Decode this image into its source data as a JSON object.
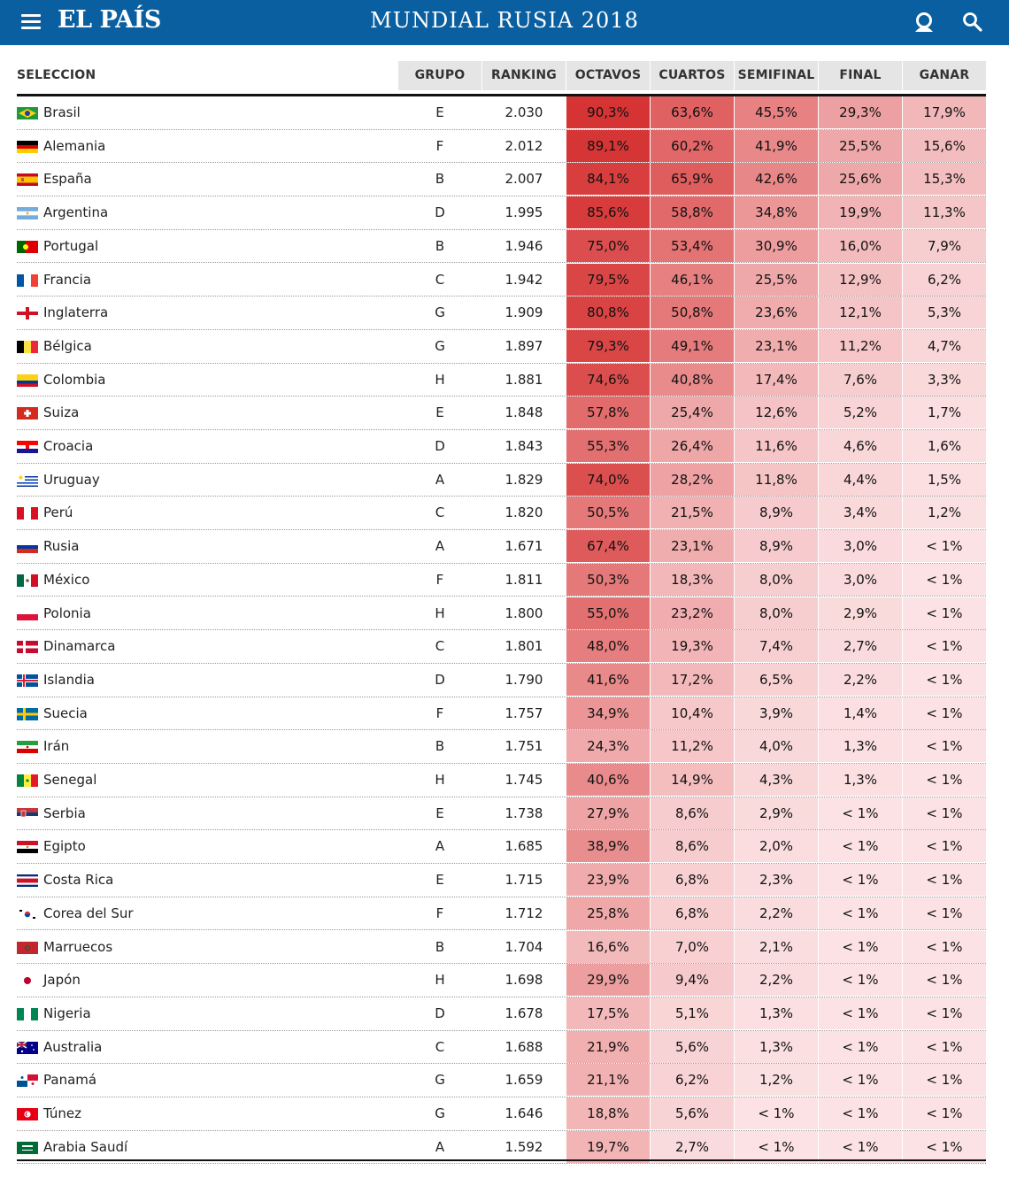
{
  "header": {
    "logo": "EL PAÍS",
    "title": "MUNDIAL RUSIA 2018",
    "menu_icon": "hamburger-menu-icon",
    "user_icon": "user-icon",
    "search_icon": "search-icon",
    "bg_color": "#0a5fa0"
  },
  "table": {
    "columns": [
      "SELECCION",
      "GRUPO",
      "RANKING",
      "OCTAVOS",
      "CUARTOS",
      "SEMIFINAL",
      "FINAL",
      "GANAR"
    ],
    "rows": [
      {
        "team": "Brasil",
        "flag": "br",
        "group": "E",
        "ranking": "2.030",
        "octavos": "90,3%",
        "cuartos": "63,6%",
        "semifinal": "45,5%",
        "final": "29,3%",
        "ganar": "17,9%"
      },
      {
        "team": "Alemania",
        "flag": "de",
        "group": "F",
        "ranking": "2.012",
        "octavos": "89,1%",
        "cuartos": "60,2%",
        "semifinal": "41,9%",
        "final": "25,5%",
        "ganar": "15,6%"
      },
      {
        "team": "España",
        "flag": "es",
        "group": "B",
        "ranking": "2.007",
        "octavos": "84,1%",
        "cuartos": "65,9%",
        "semifinal": "42,6%",
        "final": "25,6%",
        "ganar": "15,3%"
      },
      {
        "team": "Argentina",
        "flag": "ar",
        "group": "D",
        "ranking": "1.995",
        "octavos": "85,6%",
        "cuartos": "58,8%",
        "semifinal": "34,8%",
        "final": "19,9%",
        "ganar": "11,3%"
      },
      {
        "team": "Portugal",
        "flag": "pt",
        "group": "B",
        "ranking": "1.946",
        "octavos": "75,0%",
        "cuartos": "53,4%",
        "semifinal": "30,9%",
        "final": "16,0%",
        "ganar": "7,9%"
      },
      {
        "team": "Francia",
        "flag": "fr",
        "group": "C",
        "ranking": "1.942",
        "octavos": "79,5%",
        "cuartos": "46,1%",
        "semifinal": "25,5%",
        "final": "12,9%",
        "ganar": "6,2%"
      },
      {
        "team": "Inglaterra",
        "flag": "en",
        "group": "G",
        "ranking": "1.909",
        "octavos": "80,8%",
        "cuartos": "50,8%",
        "semifinal": "23,6%",
        "final": "12,1%",
        "ganar": "5,3%"
      },
      {
        "team": "Bélgica",
        "flag": "be",
        "group": "G",
        "ranking": "1.897",
        "octavos": "79,3%",
        "cuartos": "49,1%",
        "semifinal": "23,1%",
        "final": "11,2%",
        "ganar": "4,7%"
      },
      {
        "team": "Colombia",
        "flag": "co",
        "group": "H",
        "ranking": "1.881",
        "octavos": "74,6%",
        "cuartos": "40,8%",
        "semifinal": "17,4%",
        "final": "7,6%",
        "ganar": "3,3%"
      },
      {
        "team": "Suiza",
        "flag": "ch",
        "group": "E",
        "ranking": "1.848",
        "octavos": "57,8%",
        "cuartos": "25,4%",
        "semifinal": "12,6%",
        "final": "5,2%",
        "ganar": "1,7%"
      },
      {
        "team": "Croacia",
        "flag": "hr",
        "group": "D",
        "ranking": "1.843",
        "octavos": "55,3%",
        "cuartos": "26,4%",
        "semifinal": "11,6%",
        "final": "4,6%",
        "ganar": "1,6%"
      },
      {
        "team": "Uruguay",
        "flag": "uy",
        "group": "A",
        "ranking": "1.829",
        "octavos": "74,0%",
        "cuartos": "28,2%",
        "semifinal": "11,8%",
        "final": "4,4%",
        "ganar": "1,5%"
      },
      {
        "team": "Perú",
        "flag": "pe",
        "group": "C",
        "ranking": "1.820",
        "octavos": "50,5%",
        "cuartos": "21,5%",
        "semifinal": "8,9%",
        "final": "3,4%",
        "ganar": "1,2%"
      },
      {
        "team": "Rusia",
        "flag": "ru",
        "group": "A",
        "ranking": "1.671",
        "octavos": "67,4%",
        "cuartos": "23,1%",
        "semifinal": "8,9%",
        "final": "3,0%",
        "ganar": "< 1%"
      },
      {
        "team": "México",
        "flag": "mx",
        "group": "F",
        "ranking": "1.811",
        "octavos": "50,3%",
        "cuartos": "18,3%",
        "semifinal": "8,0%",
        "final": "3,0%",
        "ganar": "< 1%"
      },
      {
        "team": "Polonia",
        "flag": "pl",
        "group": "H",
        "ranking": "1.800",
        "octavos": "55,0%",
        "cuartos": "23,2%",
        "semifinal": "8,0%",
        "final": "2,9%",
        "ganar": "< 1%"
      },
      {
        "team": "Dinamarca",
        "flag": "dk",
        "group": "C",
        "ranking": "1.801",
        "octavos": "48,0%",
        "cuartos": "19,3%",
        "semifinal": "7,4%",
        "final": "2,7%",
        "ganar": "< 1%"
      },
      {
        "team": "Islandia",
        "flag": "is",
        "group": "D",
        "ranking": "1.790",
        "octavos": "41,6%",
        "cuartos": "17,2%",
        "semifinal": "6,5%",
        "final": "2,2%",
        "ganar": "< 1%"
      },
      {
        "team": "Suecia",
        "flag": "se",
        "group": "F",
        "ranking": "1.757",
        "octavos": "34,9%",
        "cuartos": "10,4%",
        "semifinal": "3,9%",
        "final": "1,4%",
        "ganar": "< 1%"
      },
      {
        "team": "Irán",
        "flag": "ir",
        "group": "B",
        "ranking": "1.751",
        "octavos": "24,3%",
        "cuartos": "11,2%",
        "semifinal": "4,0%",
        "final": "1,3%",
        "ganar": "< 1%"
      },
      {
        "team": "Senegal",
        "flag": "sn",
        "group": "H",
        "ranking": "1.745",
        "octavos": "40,6%",
        "cuartos": "14,9%",
        "semifinal": "4,3%",
        "final": "1,3%",
        "ganar": "< 1%"
      },
      {
        "team": "Serbia",
        "flag": "rs",
        "group": "E",
        "ranking": "1.738",
        "octavos": "27,9%",
        "cuartos": "8,6%",
        "semifinal": "2,9%",
        "final": "< 1%",
        "ganar": "< 1%"
      },
      {
        "team": "Egipto",
        "flag": "eg",
        "group": "A",
        "ranking": "1.685",
        "octavos": "38,9%",
        "cuartos": "8,6%",
        "semifinal": "2,0%",
        "final": "< 1%",
        "ganar": "< 1%"
      },
      {
        "team": "Costa Rica",
        "flag": "cr",
        "group": "E",
        "ranking": "1.715",
        "octavos": "23,9%",
        "cuartos": "6,8%",
        "semifinal": "2,3%",
        "final": "< 1%",
        "ganar": "< 1%"
      },
      {
        "team": "Corea del Sur",
        "flag": "kr",
        "group": "F",
        "ranking": "1.712",
        "octavos": "25,8%",
        "cuartos": "6,8%",
        "semifinal": "2,2%",
        "final": "< 1%",
        "ganar": "< 1%"
      },
      {
        "team": "Marruecos",
        "flag": "ma",
        "group": "B",
        "ranking": "1.704",
        "octavos": "16,6%",
        "cuartos": "7,0%",
        "semifinal": "2,1%",
        "final": "< 1%",
        "ganar": "< 1%"
      },
      {
        "team": "Japón",
        "flag": "jp",
        "group": "H",
        "ranking": "1.698",
        "octavos": "29,9%",
        "cuartos": "9,4%",
        "semifinal": "2,2%",
        "final": "< 1%",
        "ganar": "< 1%"
      },
      {
        "team": "Nigeria",
        "flag": "ng",
        "group": "D",
        "ranking": "1.678",
        "octavos": "17,5%",
        "cuartos": "5,1%",
        "semifinal": "1,3%",
        "final": "< 1%",
        "ganar": "< 1%"
      },
      {
        "team": "Australia",
        "flag": "au",
        "group": "C",
        "ranking": "1.688",
        "octavos": "21,9%",
        "cuartos": "5,6%",
        "semifinal": "1,3%",
        "final": "< 1%",
        "ganar": "< 1%"
      },
      {
        "team": "Panamá",
        "flag": "pa",
        "group": "G",
        "ranking": "1.659",
        "octavos": "21,1%",
        "cuartos": "6,2%",
        "semifinal": "1,2%",
        "final": "< 1%",
        "ganar": "< 1%"
      },
      {
        "team": "Túnez",
        "flag": "tn",
        "group": "G",
        "ranking": "1.646",
        "octavos": "18,8%",
        "cuartos": "5,6%",
        "semifinal": "< 1%",
        "final": "< 1%",
        "ganar": "< 1%"
      },
      {
        "team": "Arabia Saudí",
        "flag": "sa",
        "group": "A",
        "ranking": "1.592",
        "octavos": "19,7%",
        "cuartos": "2,7%",
        "semifinal": "< 1%",
        "final": "< 1%",
        "ganar": "< 1%"
      }
    ]
  }
}
